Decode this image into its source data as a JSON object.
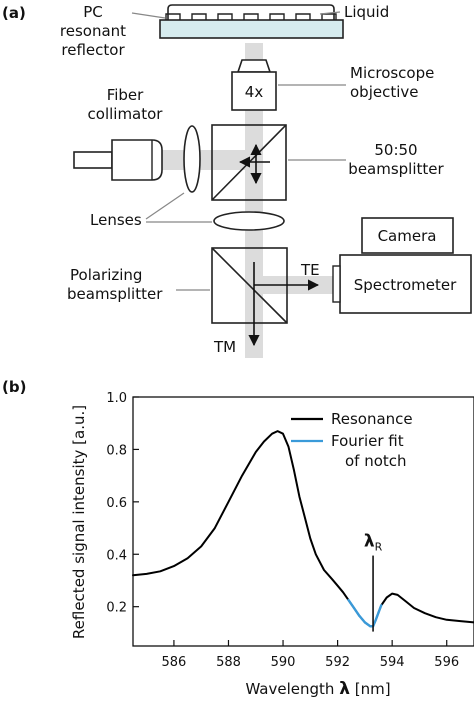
{
  "panel_a": {
    "panel_label": "(a)",
    "labels": {
      "pc_line1": "PC",
      "pc_line2": "resonant",
      "pc_line3": "reflector",
      "liquid": "Liquid",
      "micro_line1": "Microscope",
      "micro_line2": "objective",
      "objective_mag": "4x",
      "fiber_line1": "Fiber",
      "fiber_line2": "collimator",
      "bs_line1": "50:50",
      "bs_line2": "beamsplitter",
      "lenses": "Lenses",
      "camera": "Camera",
      "spectrometer": "Spectrometer",
      "pol_line1": "Polarizing",
      "pol_line2": "beamsplitter",
      "te": "TE",
      "tm": "TM"
    }
  },
  "panel_b": {
    "panel_label": "(b)",
    "annotation_main": "λ",
    "annotation_sub": "R",
    "legend": {
      "resonance": "Resonance",
      "fit_line1": "Fourier fit",
      "fit_line2": "of notch"
    },
    "colors": {
      "resonance": "#000000",
      "fit": "#3a9ad9"
    }
  },
  "chart_data": {
    "type": "line",
    "xlabel_prefix": "Wavelength ",
    "xlabel_symbol": "λ",
    "xlabel_unit": " [nm]",
    "ylabel": "Reflected signal intensity [a.u.]",
    "xlim": [
      584.5,
      597
    ],
    "ylim": [
      0.05,
      1.0
    ],
    "xticks": [
      586,
      588,
      590,
      592,
      594,
      596
    ],
    "yticks": [
      0.2,
      0.4,
      0.6,
      0.8,
      1.0
    ],
    "ytick_labels": [
      "0.2",
      "0.4",
      "0.6",
      "0.8",
      "1.0"
    ],
    "legend_position": "top-right",
    "resonance_marker_x": 593.3,
    "series": [
      {
        "name": "Resonance",
        "x": [
          584.5,
          585.0,
          585.5,
          586.0,
          586.5,
          587.0,
          587.5,
          588.0,
          588.5,
          589.0,
          589.3,
          589.6,
          589.8,
          590.0,
          590.2,
          590.4,
          590.6,
          590.8,
          591.0,
          591.2,
          591.5,
          591.8,
          592.0,
          592.2,
          592.4,
          592.6,
          592.8,
          593.0,
          593.2,
          593.3,
          593.4,
          593.6,
          593.8,
          594.0,
          594.2,
          594.5,
          594.8,
          595.2,
          595.6,
          596.0,
          596.5,
          597.0
        ],
        "y": [
          0.32,
          0.325,
          0.335,
          0.355,
          0.385,
          0.43,
          0.5,
          0.6,
          0.7,
          0.79,
          0.83,
          0.86,
          0.87,
          0.86,
          0.81,
          0.72,
          0.62,
          0.54,
          0.46,
          0.4,
          0.34,
          0.305,
          0.28,
          0.255,
          0.225,
          0.195,
          0.165,
          0.14,
          0.125,
          0.125,
          0.15,
          0.205,
          0.235,
          0.25,
          0.245,
          0.22,
          0.195,
          0.175,
          0.16,
          0.15,
          0.145,
          0.14
        ]
      },
      {
        "name": "Fourier fit of notch",
        "x": [
          592.4,
          592.6,
          592.8,
          593.0,
          593.2,
          593.3,
          593.4,
          593.6
        ],
        "y": [
          0.225,
          0.195,
          0.165,
          0.14,
          0.125,
          0.125,
          0.15,
          0.205
        ]
      }
    ]
  }
}
